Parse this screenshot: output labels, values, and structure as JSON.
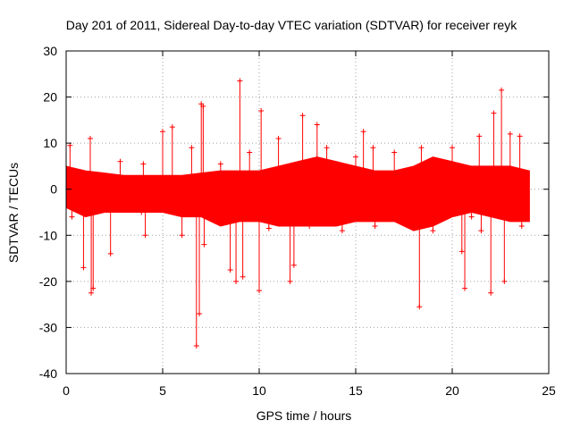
{
  "chart_data": {
    "type": "line",
    "title": "Day 201 of 2011, Sidereal Day-to-day VTEC variation (SDTVAR) for receiver reyk",
    "xlabel": "GPS time / hours",
    "ylabel": "SDTVAR / TECUs",
    "xlim": [
      0,
      25
    ],
    "ylim": [
      -40,
      30
    ],
    "xticks": [
      0,
      5,
      10,
      15,
      20,
      25
    ],
    "yticks": [
      -40,
      -30,
      -20,
      -10,
      0,
      10,
      20,
      30
    ],
    "grid": true,
    "legend": "none",
    "color": "#ff0000",
    "series": [
      {
        "name": "SDTVAR",
        "x_range": [
          0,
          24
        ],
        "envelope": {
          "hours": [
            0,
            1,
            2,
            3,
            4,
            5,
            6,
            7,
            8,
            9,
            10,
            11,
            12,
            13,
            14,
            15,
            16,
            17,
            18,
            19,
            20,
            21,
            22,
            23,
            24
          ],
          "upper": [
            5,
            4,
            3.5,
            3,
            3,
            3,
            3,
            3.5,
            4,
            4,
            4,
            5,
            6,
            7,
            6,
            5,
            4,
            4,
            5,
            7,
            6,
            5,
            5,
            5,
            4
          ],
          "lower": [
            -4,
            -6,
            -5,
            -5,
            -5,
            -5,
            -6,
            -6,
            -8,
            -7,
            -7,
            -8,
            -8,
            -8,
            -8,
            -7,
            -7,
            -7,
            -9,
            -8,
            -6,
            -5,
            -6,
            -7,
            -7
          ]
        },
        "spikes": [
          {
            "x": 0.2,
            "y": 9.5
          },
          {
            "x": 0.3,
            "y": -6
          },
          {
            "x": 0.9,
            "y": -17
          },
          {
            "x": 1.25,
            "y": 11
          },
          {
            "x": 1.3,
            "y": -22.5
          },
          {
            "x": 1.4,
            "y": -21.5
          },
          {
            "x": 2.3,
            "y": -14
          },
          {
            "x": 2.8,
            "y": 6
          },
          {
            "x": 3.9,
            "y": -5
          },
          {
            "x": 4.0,
            "y": 5.5
          },
          {
            "x": 4.1,
            "y": -10
          },
          {
            "x": 5.0,
            "y": 12.5
          },
          {
            "x": 5.5,
            "y": 13.5
          },
          {
            "x": 6.0,
            "y": -10
          },
          {
            "x": 6.5,
            "y": 9
          },
          {
            "x": 6.75,
            "y": -34
          },
          {
            "x": 6.9,
            "y": -27
          },
          {
            "x": 7.0,
            "y": 18.5
          },
          {
            "x": 7.1,
            "y": 18
          },
          {
            "x": 7.15,
            "y": -12
          },
          {
            "x": 8.0,
            "y": 5.5
          },
          {
            "x": 8.5,
            "y": -17.5
          },
          {
            "x": 8.8,
            "y": -20
          },
          {
            "x": 9.0,
            "y": 23.5
          },
          {
            "x": 9.15,
            "y": -19
          },
          {
            "x": 9.5,
            "y": 8
          },
          {
            "x": 10.0,
            "y": -22
          },
          {
            "x": 10.1,
            "y": 17
          },
          {
            "x": 10.5,
            "y": -8.5
          },
          {
            "x": 11.0,
            "y": 11
          },
          {
            "x": 11.6,
            "y": -20
          },
          {
            "x": 11.8,
            "y": -16.5
          },
          {
            "x": 12.25,
            "y": 16
          },
          {
            "x": 12.6,
            "y": -8
          },
          {
            "x": 13.0,
            "y": 14
          },
          {
            "x": 13.5,
            "y": 9
          },
          {
            "x": 14.3,
            "y": -9
          },
          {
            "x": 15.0,
            "y": 7
          },
          {
            "x": 15.4,
            "y": 12.5
          },
          {
            "x": 15.9,
            "y": 9
          },
          {
            "x": 16.0,
            "y": -8
          },
          {
            "x": 17.0,
            "y": 8
          },
          {
            "x": 18.3,
            "y": -25.5
          },
          {
            "x": 18.4,
            "y": 9
          },
          {
            "x": 19.0,
            "y": -9
          },
          {
            "x": 20.0,
            "y": 9
          },
          {
            "x": 20.5,
            "y": -13.5
          },
          {
            "x": 20.65,
            "y": -21.5
          },
          {
            "x": 21.0,
            "y": -6
          },
          {
            "x": 21.4,
            "y": 11.5
          },
          {
            "x": 21.5,
            "y": -9
          },
          {
            "x": 21.8,
            "y": -5
          },
          {
            "x": 22.0,
            "y": -22.5
          },
          {
            "x": 22.15,
            "y": 16.5
          },
          {
            "x": 22.55,
            "y": 21.5
          },
          {
            "x": 22.7,
            "y": -20
          },
          {
            "x": 23.0,
            "y": 12
          },
          {
            "x": 23.5,
            "y": 11.5
          },
          {
            "x": 23.6,
            "y": -8
          }
        ]
      }
    ]
  }
}
